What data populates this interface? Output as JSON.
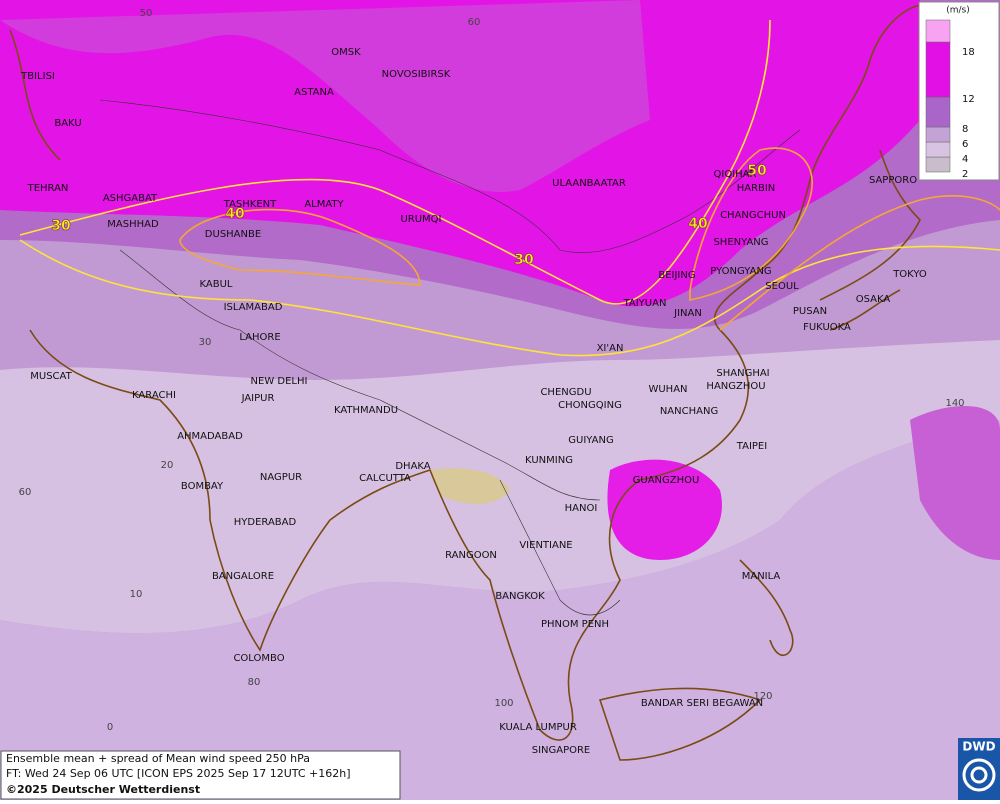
{
  "map": {
    "cities": [
      "TBILISI",
      "BAKU",
      "TEHRAN",
      "ASHGABAT",
      "MASHHAD",
      "TASHKENT",
      "ALMATY",
      "DUSHANBE",
      "OMSK",
      "NOVOSIBIRSK",
      "ASTANA",
      "URUMQI",
      "ULAANBAATAR",
      "QIQIHAR",
      "HARBIN",
      "CHANGCHUN",
      "SHENYANG",
      "BEIJING",
      "PYONGYANG",
      "SEOUL",
      "TAIYUAN",
      "JINAN",
      "PUSAN",
      "OSAKA",
      "FUKUOKA",
      "TOKYO",
      "SAPPORO",
      "XI'AN",
      "KABUL",
      "ISLAMABAD",
      "LAHORE",
      "NEW DELHI",
      "JAIPUR",
      "KARACHI",
      "MUSCAT",
      "AHMADABAD",
      "KATHMANDU",
      "CHENGDU",
      "CHONGQING",
      "WUHAN",
      "SHANGHAI",
      "HANGZHOU",
      "NANCHANG",
      "GUIYANG",
      "TAIPEI",
      "KUNMING",
      "GUANGZHOU",
      "DHAKA",
      "CALCUTTA",
      "HANOI",
      "BOMBAY",
      "NAGPUR",
      "HYDERABAD",
      "VIENTIANE",
      "RANGOON",
      "BANGALORE",
      "MANILA",
      "BANGKOK",
      "PHNOM PENH",
      "COLOMBO",
      "BANDAR SERI BEGAWAN",
      "KUALA LUMPUR",
      "SINGAPORE"
    ],
    "contour_labels": [
      30,
      40,
      30,
      40,
      50
    ],
    "grid_labels": [
      50,
      60,
      30,
      20,
      10,
      0,
      60,
      80,
      100,
      140,
      120
    ],
    "legend": {
      "unit": "(m/s)",
      "levels": [
        2,
        4,
        6,
        8,
        12,
        18
      ],
      "colors": [
        "#c9bccb",
        "#d9c3e3",
        "#c3a2d6",
        "#a965c8",
        "#e210e4",
        "#f7a3f2"
      ]
    }
  },
  "caption": {
    "lines": [
      "Ensemble mean + spread of Mean wind speed 250 hPa",
      "FT: Wed 24 Sep 06 UTC [ICON EPS 2025 Sep 17 12UTC +162h]",
      "©2025 Deutscher Wetterdienst"
    ]
  },
  "logo": "DWD"
}
